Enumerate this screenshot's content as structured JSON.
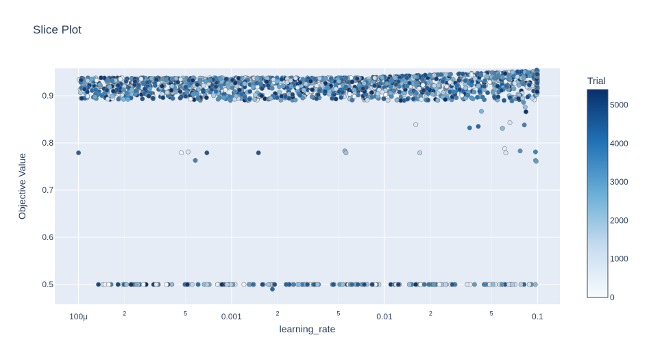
{
  "chart_data": {
    "type": "scatter",
    "title": "Slice Plot",
    "xlabel": "learning_rate",
    "ylabel": "Objective Value",
    "x_scale": "log",
    "xlim": [
      7e-05,
      0.14
    ],
    "ylim": [
      0.458,
      0.958
    ],
    "x_ticks": [
      {
        "value": 0.0001,
        "label": "100μ",
        "major": true
      },
      {
        "value": 0.0002,
        "label": "2",
        "major": false
      },
      {
        "value": 0.0005,
        "label": "5",
        "major": false
      },
      {
        "value": 0.001,
        "label": "0.001",
        "major": true
      },
      {
        "value": 0.002,
        "label": "2",
        "major": false
      },
      {
        "value": 0.005,
        "label": "5",
        "major": false
      },
      {
        "value": 0.01,
        "label": "0.01",
        "major": true
      },
      {
        "value": 0.02,
        "label": "2",
        "major": false
      },
      {
        "value": 0.05,
        "label": "5",
        "major": false
      },
      {
        "value": 0.1,
        "label": "0.1",
        "major": true
      }
    ],
    "y_ticks": [
      {
        "value": 0.5,
        "label": "0.5"
      },
      {
        "value": 0.6,
        "label": "0.6"
      },
      {
        "value": 0.7,
        "label": "0.7"
      },
      {
        "value": 0.8,
        "label": "0.8"
      },
      {
        "value": 0.9,
        "label": "0.9"
      }
    ],
    "colorbar": {
      "title": "Trial",
      "range": [
        0,
        5400
      ],
      "ticks": [
        0,
        1000,
        2000,
        3000,
        4000,
        5000
      ],
      "colorscale": [
        "#f7fbff",
        "#c6dbef",
        "#6baed6",
        "#2171b5",
        "#08306b"
      ]
    },
    "grid": true,
    "points": [
      [
        0.0001,
        0.779,
        4300
      ],
      [
        0.00047,
        0.779,
        300
      ],
      [
        0.00052,
        0.781,
        800
      ],
      [
        0.00058,
        0.763,
        3600
      ],
      [
        0.00069,
        0.779,
        4600
      ],
      [
        0.0055,
        0.783,
        2400
      ],
      [
        0.0056,
        0.779,
        2000
      ],
      [
        0.016,
        0.839,
        700
      ],
      [
        0.017,
        0.779,
        1500
      ],
      [
        0.036,
        0.832,
        3900
      ],
      [
        0.041,
        0.835,
        4200
      ],
      [
        0.043,
        0.867,
        2500
      ],
      [
        0.059,
        0.831,
        2300
      ],
      [
        0.061,
        0.788,
        600
      ],
      [
        0.062,
        0.779,
        800
      ],
      [
        0.066,
        0.843,
        900
      ],
      [
        0.077,
        0.783,
        3300
      ],
      [
        0.082,
        0.838,
        3600
      ],
      [
        0.097,
        0.781,
        3600
      ],
      [
        0.097,
        0.763,
        2800
      ],
      [
        0.098,
        0.761,
        3000
      ],
      [
        0.0015,
        0.779,
        4600
      ],
      [
        0.00185,
        0.49,
        4200
      ],
      [
        0.066,
        0.896,
        4700
      ],
      [
        0.068,
        0.889,
        3800
      ],
      [
        0.075,
        0.894,
        5200
      ],
      [
        0.083,
        0.876,
        2100
      ],
      [
        0.084,
        0.866,
        5300
      ],
      [
        0.081,
        0.886,
        3200
      ]
    ],
    "dense_band": {
      "y_min": 0.89,
      "y_max": 0.945,
      "n_trials": 5400
    },
    "floor_cluster": {
      "y": 0.5,
      "x_min": 0.00013,
      "x_max": 0.1
    }
  }
}
